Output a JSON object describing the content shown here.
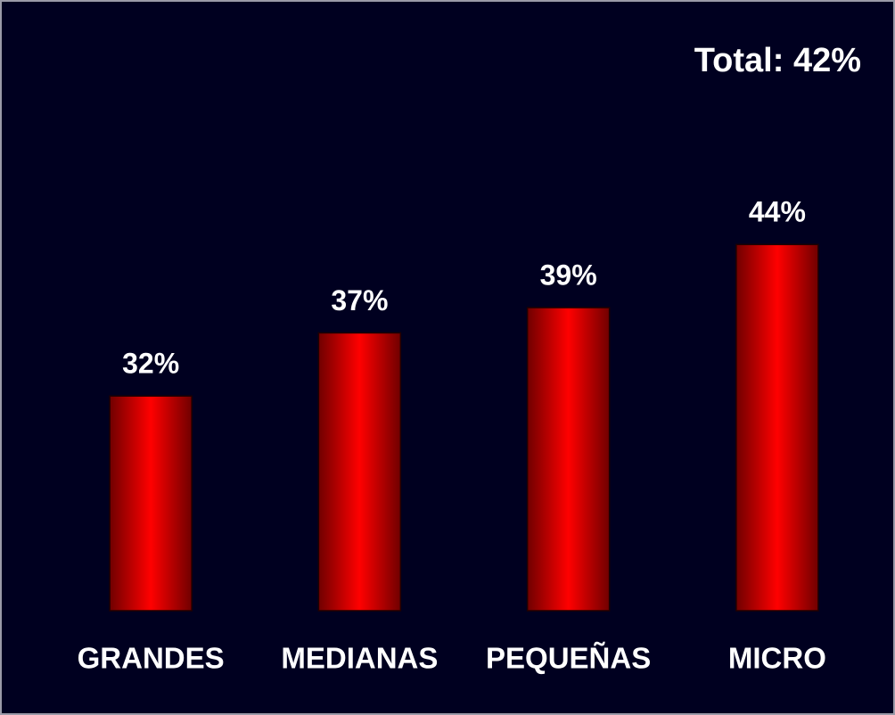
{
  "chart_data": {
    "type": "bar",
    "annotation": "Total: 42%",
    "categories": [
      "GRANDES",
      "MEDIANAS",
      "PEQUEÑAS",
      "MICRO"
    ],
    "values": [
      32,
      37,
      39,
      44
    ],
    "value_labels": [
      "32%",
      "37%",
      "39%",
      "44%"
    ],
    "color": "#ff0000",
    "ylim": [
      15,
      58
    ]
  }
}
